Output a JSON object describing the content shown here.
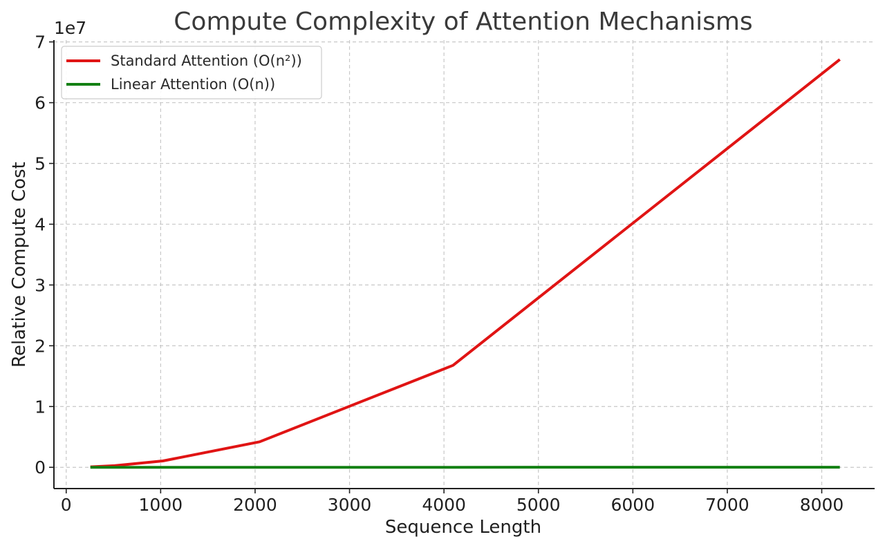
{
  "chart_data": {
    "type": "line",
    "title": "Compute Complexity of Attention Mechanisms",
    "xlabel": "Sequence Length",
    "ylabel": "Relative Compute Cost",
    "y_offset_label": "1e7",
    "x_ticks": [
      0,
      1000,
      2000,
      3000,
      4000,
      5000,
      6000,
      7000,
      8000
    ],
    "y_ticks": [
      0,
      1,
      2,
      3,
      4,
      5,
      6,
      7
    ],
    "y_scale": 10000000,
    "xlim": [
      -130,
      8560
    ],
    "ylim": [
      -3500000,
      70300000
    ],
    "grid": true,
    "legend_position": "top-left",
    "x": [
      256,
      512,
      1024,
      2048,
      4096,
      8192
    ],
    "series": [
      {
        "name": "Standard Attention (O(n²))",
        "color": "#e01414",
        "values": [
          65536,
          262144,
          1048576,
          4194304,
          16777216,
          67108864
        ]
      },
      {
        "name": "Linear Attention (O(n))",
        "color": "#138013",
        "values": [
          256,
          512,
          1024,
          2048,
          4096,
          8192
        ]
      }
    ]
  }
}
